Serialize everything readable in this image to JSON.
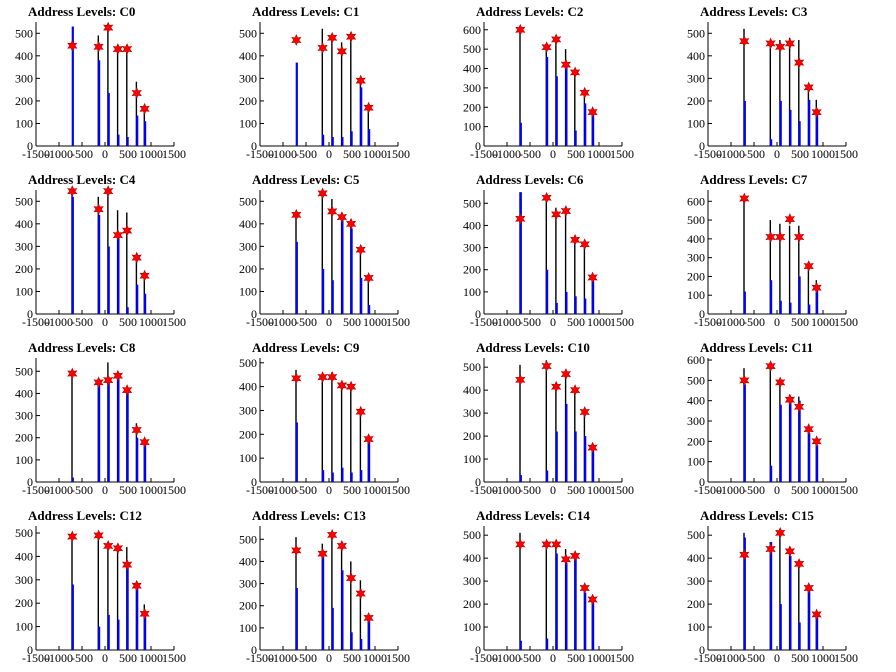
{
  "chart_data": {
    "type": "bar",
    "xlim": [
      -1500,
      1500
    ],
    "x_ticks": [
      -1500,
      -1000,
      -500,
      0,
      500,
      1000,
      1500
    ],
    "x_tick_labels": [
      "-1500",
      "-1000",
      "-500",
      "0",
      "500",
      "1000",
      "1500"
    ],
    "colors": {
      "bar": "#0000ff",
      "black_bar": "#000000",
      "star": "#ff0000"
    },
    "panels": [
      {
        "title": "Address Levels: C0",
        "ylim": [
          0,
          550
        ],
        "yticks": [
          0,
          100,
          200,
          300,
          400,
          500
        ],
        "blue_x": [
          -710,
          -140,
          70,
          280,
          480,
          690,
          860
        ],
        "blue": [
          530,
          380,
          235,
          50,
          40,
          135,
          110
        ],
        "black": [
          0,
          490,
          520,
          440,
          440,
          285,
          165
        ],
        "stars": [
          445,
          440,
          525,
          430,
          430,
          235,
          165
        ]
      },
      {
        "title": "Address Levels: C1",
        "ylim": [
          0,
          550
        ],
        "yticks": [
          0,
          100,
          200,
          300,
          400,
          500
        ],
        "blue_x": [
          -710,
          -140,
          70,
          280,
          480,
          690,
          860
        ],
        "blue": [
          370,
          50,
          40,
          40,
          65,
          260,
          75
        ],
        "black": [
          0,
          520,
          480,
          460,
          470,
          290,
          160
        ],
        "stars": [
          470,
          435,
          480,
          420,
          485,
          290,
          170
        ]
      },
      {
        "title": "Address Levels: C2",
        "ylim": [
          0,
          640
        ],
        "yticks": [
          0,
          100,
          200,
          300,
          400,
          500,
          600
        ],
        "blue_x": [
          -710,
          -140,
          70,
          280,
          480,
          690,
          860
        ],
        "blue": [
          120,
          460,
          360,
          410,
          80,
          220,
          170
        ],
        "black": [
          620,
          500,
          570,
          500,
          390,
          285,
          175
        ],
        "stars": [
          600,
          510,
          550,
          420,
          380,
          275,
          175
        ]
      },
      {
        "title": "Address Levels: C3",
        "ylim": [
          0,
          550
        ],
        "yticks": [
          0,
          100,
          200,
          300,
          400,
          500
        ],
        "blue_x": [
          -710,
          -140,
          70,
          280,
          480,
          690,
          860
        ],
        "blue": [
          200,
          30,
          200,
          160,
          110,
          205,
          140
        ],
        "black": [
          520,
          450,
          470,
          480,
          470,
          265,
          205
        ],
        "stars": [
          465,
          455,
          440,
          455,
          370,
          260,
          150
        ]
      },
      {
        "title": "Address Levels: C4",
        "ylim": [
          0,
          550
        ],
        "yticks": [
          0,
          100,
          200,
          300,
          400,
          500
        ],
        "blue_x": [
          -710,
          -140,
          70,
          280,
          480,
          690,
          860
        ],
        "blue": [
          520,
          440,
          300,
          350,
          30,
          130,
          90
        ],
        "black": [
          550,
          520,
          550,
          460,
          450,
          260,
          175
        ],
        "stars": [
          545,
          465,
          545,
          350,
          370,
          250,
          170
        ]
      },
      {
        "title": "Address Levels: C5",
        "ylim": [
          0,
          550
        ],
        "yticks": [
          0,
          100,
          200,
          300,
          400,
          500
        ],
        "blue_x": [
          -710,
          -140,
          70,
          280,
          480,
          690,
          860
        ],
        "blue": [
          320,
          200,
          150,
          420,
          380,
          160,
          40
        ],
        "black": [
          445,
          530,
          510,
          440,
          420,
          290,
          165
        ],
        "stars": [
          440,
          535,
          455,
          430,
          400,
          285,
          160
        ]
      },
      {
        "title": "Address Levels: C6",
        "ylim": [
          0,
          560
        ],
        "yticks": [
          0,
          100,
          200,
          300,
          400,
          500
        ],
        "blue_x": [
          -710,
          -140,
          70,
          280,
          480,
          690,
          860
        ],
        "blue": [
          550,
          200,
          50,
          100,
          80,
          70,
          170
        ],
        "black": [
          550,
          530,
          480,
          480,
          340,
          330,
          170
        ],
        "stars": [
          430,
          525,
          450,
          465,
          335,
          315,
          165
        ]
      },
      {
        "title": "Address Levels: C7",
        "ylim": [
          0,
          660
        ],
        "yticks": [
          0,
          100,
          200,
          300,
          400,
          500,
          600
        ],
        "blue_x": [
          -710,
          -140,
          70,
          280,
          480,
          690,
          860
        ],
        "blue": [
          120,
          180,
          70,
          60,
          200,
          50,
          140
        ],
        "black": [
          620,
          500,
          480,
          470,
          470,
          270,
          180
        ],
        "stars": [
          615,
          410,
          410,
          505,
          410,
          255,
          140
        ]
      },
      {
        "title": "Address Levels: C8",
        "ylim": [
          0,
          560
        ],
        "yticks": [
          0,
          100,
          200,
          300,
          400,
          500
        ],
        "blue_x": [
          -710,
          -140,
          70,
          280,
          480,
          690,
          860
        ],
        "blue": [
          20,
          450,
          470,
          470,
          420,
          200,
          180
        ],
        "black": [
          500,
          460,
          540,
          480,
          420,
          265,
          185
        ],
        "stars": [
          490,
          450,
          460,
          480,
          415,
          235,
          180
        ]
      },
      {
        "title": "Address Levels: C9",
        "ylim": [
          0,
          520
        ],
        "yticks": [
          0,
          100,
          200,
          300,
          400,
          500
        ],
        "blue_x": [
          -710,
          -140,
          70,
          280,
          480,
          690,
          860
        ],
        "blue": [
          250,
          50,
          40,
          60,
          40,
          50,
          185
        ],
        "black": [
          470,
          440,
          460,
          420,
          400,
          300,
          185
        ],
        "stars": [
          435,
          440,
          440,
          405,
          400,
          295,
          180
        ]
      },
      {
        "title": "Address Levels: C10",
        "ylim": [
          0,
          540
        ],
        "yticks": [
          0,
          100,
          200,
          300,
          400,
          500
        ],
        "blue_x": [
          -710,
          -140,
          70,
          280,
          480,
          690,
          860
        ],
        "blue": [
          30,
          50,
          220,
          340,
          220,
          200,
          140
        ],
        "black": [
          510,
          530,
          420,
          480,
          390,
          290,
          160
        ],
        "stars": [
          445,
          505,
          415,
          470,
          400,
          305,
          150
        ]
      },
      {
        "title": "Address Levels: C11",
        "ylim": [
          0,
          610
        ],
        "yticks": [
          0,
          100,
          200,
          300,
          400,
          500,
          600
        ],
        "blue_x": [
          -710,
          -140,
          70,
          280,
          480,
          690,
          860
        ],
        "blue": [
          480,
          80,
          380,
          420,
          400,
          240,
          180
        ],
        "black": [
          560,
          570,
          500,
          430,
          420,
          270,
          210
        ],
        "stars": [
          500,
          570,
          490,
          405,
          370,
          260,
          200
        ]
      },
      {
        "title": "Address Levels: C12",
        "ylim": [
          0,
          530
        ],
        "yticks": [
          0,
          100,
          200,
          300,
          400,
          500
        ],
        "blue_x": [
          -710,
          -140,
          70,
          280,
          480,
          690,
          860
        ],
        "blue": [
          280,
          100,
          150,
          130,
          360,
          270,
          160
        ],
        "black": [
          500,
          500,
          460,
          440,
          440,
          290,
          195
        ],
        "stars": [
          485,
          490,
          445,
          435,
          365,
          275,
          155
        ]
      },
      {
        "title": "Address Levels: C13",
        "ylim": [
          0,
          560
        ],
        "yticks": [
          0,
          100,
          200,
          300,
          400,
          500
        ],
        "blue_x": [
          -710,
          -140,
          70,
          280,
          480,
          690,
          860
        ],
        "blue": [
          280,
          420,
          190,
          360,
          80,
          50,
          140
        ],
        "black": [
          510,
          480,
          520,
          490,
          400,
          315,
          160
        ],
        "stars": [
          450,
          435,
          520,
          470,
          325,
          255,
          145
        ]
      },
      {
        "title": "Address Levels: C14",
        "ylim": [
          0,
          540
        ],
        "yticks": [
          0,
          100,
          200,
          300,
          400,
          500
        ],
        "blue_x": [
          -710,
          -140,
          70,
          280,
          480,
          690,
          860
        ],
        "blue": [
          40,
          50,
          420,
          380,
          400,
          250,
          220
        ],
        "black": [
          510,
          460,
          470,
          440,
          420,
          280,
          225
        ],
        "stars": [
          460,
          460,
          460,
          395,
          410,
          270,
          220
        ]
      },
      {
        "title": "Address Levels: C15",
        "ylim": [
          0,
          540
        ],
        "yticks": [
          0,
          100,
          200,
          300,
          400,
          500
        ],
        "blue_x": [
          -710,
          -140,
          70,
          280,
          480,
          690,
          860
        ],
        "blue": [
          490,
          470,
          200,
          410,
          120,
          270,
          150
        ],
        "black": [
          510,
          470,
          520,
          450,
          360,
          280,
          160
        ],
        "stars": [
          415,
          440,
          510,
          430,
          375,
          270,
          155
        ]
      }
    ]
  }
}
